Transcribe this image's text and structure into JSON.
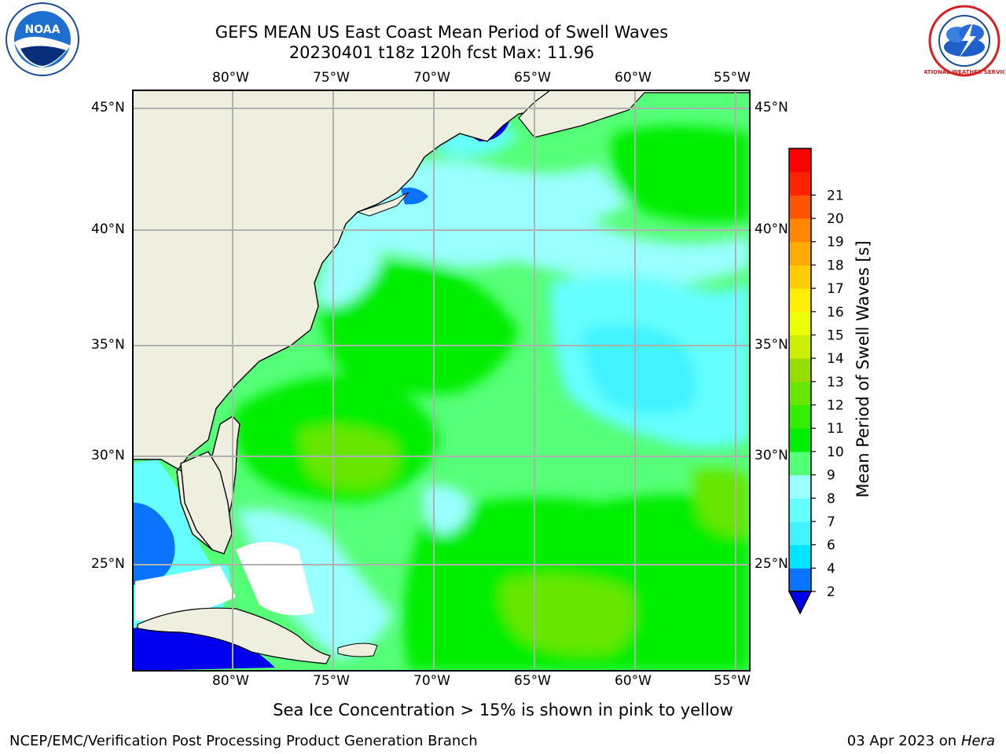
{
  "header": {
    "title_line1": "GEFS MEAN US East Coast Mean Period of Swell Waves",
    "title_line2": "20230401 t18z 120h fcst   Max: 11.96"
  },
  "logos": {
    "left_name": "NOAA",
    "right_name": "NATIONAL WEATHER SERVICE"
  },
  "axes": {
    "lon_ticks": [
      "80°W",
      "75°W",
      "70°W",
      "65°W",
      "60°W",
      "55°W"
    ],
    "lat_ticks": [
      "45°N",
      "40°N",
      "35°N",
      "30°N",
      "25°N"
    ]
  },
  "colorbar": {
    "label": "Mean Period of Swell Waves [s]",
    "ticks": [
      "2",
      "4",
      "6",
      "7",
      "8",
      "9",
      "10",
      "11",
      "12",
      "13",
      "14",
      "15",
      "16",
      "17",
      "18",
      "19",
      "20",
      "21"
    ],
    "colors": [
      "#0a74ff",
      "#00e5ff",
      "#40f3ff",
      "#66ffff",
      "#99ffff",
      "#55ff77",
      "#00ee00",
      "#33ee00",
      "#66e600",
      "#99dd00",
      "#ccee00",
      "#eeff00",
      "#ffee00",
      "#ffcc00",
      "#ffaa00",
      "#ff8800",
      "#ff5500",
      "#ff2200",
      "#ff0000"
    ],
    "under_color": "#0000ee"
  },
  "notes": {
    "sea_ice": "Sea Ice Concentration > 15% is shown in pink to yellow",
    "credit": "NCEP/EMC/Verification Post Processing Product Generation Branch",
    "date": "03 Apr 2023 on ",
    "host": "Hera"
  }
}
